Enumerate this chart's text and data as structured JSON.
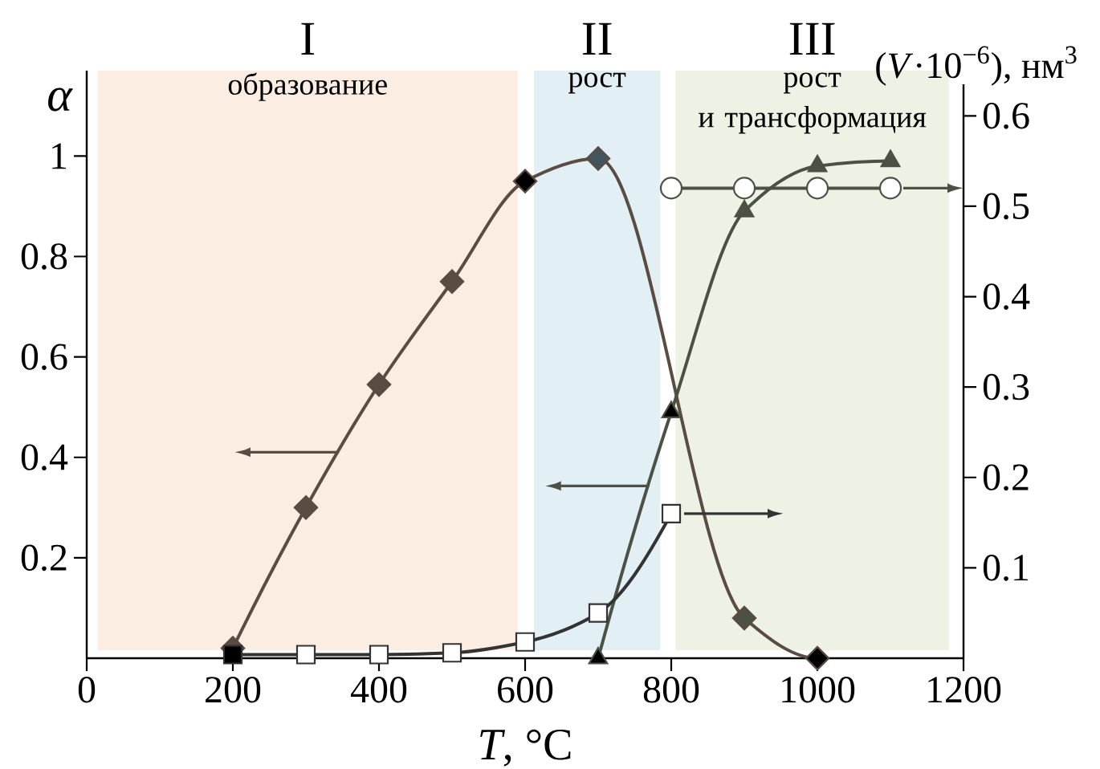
{
  "chart_data": {
    "type": "line",
    "xlabel": "*T*, °C",
    "ylabel": "α",
    "y2label": "(*V*·10$^{−6}$), нм$^{3}$",
    "annotations": [
      "I",
      "II",
      "III"
    ],
    "xlim": [
      0,
      1200
    ],
    "xticks": [
      0,
      200,
      400,
      600,
      800,
      1000,
      1200
    ],
    "ylim": [
      0,
      1.17
    ],
    "yticks": [
      0.2,
      0.4,
      0.6,
      0.8,
      1
    ],
    "y2lim": [
      0,
      0.635
    ],
    "y2ticks": [
      0.1,
      0.2,
      0.3,
      0.4,
      0.5,
      0.6
    ],
    "bands": [
      {
        "axis": "x",
        "from": 15,
        "to": 590,
        "label": "образование",
        "color": "#fbede2"
      },
      {
        "axis": "x",
        "from": 612,
        "to": 785,
        "label": "рост",
        "color": "#e2eff5"
      },
      {
        "axis": "x",
        "from": 806,
        "to": 1180,
        "label": "рост и трансформация",
        "color": "#eef2e4"
      }
    ],
    "series": [
      {
        "color": "#5b4c43",
        "marker": "diamond",
        "x": [
          200,
          300,
          400,
          500,
          600,
          700,
          900,
          1000
        ],
        "values": [
          0.02,
          0.3,
          0.545,
          0.75,
          0.95,
          0.995,
          0.08,
          0
        ],
        "colors": [
          "#5b4c43",
          "#5b4c43",
          "#5b4c43",
          "#5b4c43",
          "#000000",
          "#44545c",
          "#4b5144",
          "#000000"
        ]
      },
      {
        "color": "#4b5144",
        "marker": "triangle",
        "x": [
          700,
          800,
          900,
          1000,
          1100
        ],
        "values": [
          0,
          0.49,
          0.89,
          0.98,
          0.99
        ],
        "colors": [
          "#000000",
          "#000000",
          "#4b5144",
          "#4b5144",
          "#4b5144"
        ]
      },
      {
        "color": "#333333",
        "marker": "square",
        "axis": "y2",
        "x": [
          200,
          300,
          400,
          500,
          600,
          700,
          800
        ],
        "values": [
          0.004,
          0.004,
          0.004,
          0.006,
          0.018,
          0.05,
          0.16
        ],
        "colors": [
          "#000000",
          "#ffffff",
          "#ffffff",
          "#ffffff",
          "#ffffff",
          "#ffffff",
          "#ffffff"
        ]
      },
      {
        "color": "#4b5144",
        "marker": "circle",
        "axis": "y2",
        "x": [
          800,
          900,
          1000,
          1100
        ],
        "values": [
          0.52,
          0.52,
          0.52,
          0.52
        ],
        "colors": [
          "#ffffff",
          "#ffffff",
          "#ffffff",
          "#ffffff"
        ]
      }
    ]
  }
}
